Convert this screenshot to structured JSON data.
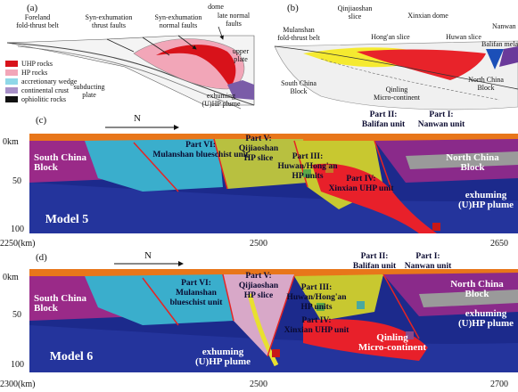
{
  "panel_a": {
    "label": "(a)",
    "annotations": [
      [
        "Foreland",
        "fold-thrust belt"
      ],
      [
        "Syn-exhumation",
        "thrust faults"
      ],
      [
        "Syn-exhumation",
        "normal faults"
      ],
      [
        "dome"
      ],
      [
        "late normal",
        "faults"
      ],
      [
        "upper",
        "plate"
      ],
      [
        "subducting",
        "plate"
      ],
      [
        "exhuming",
        "(U)HP plume"
      ]
    ],
    "legend": [
      "UHP rocks",
      "HP rocks",
      "accretionary wedge",
      "continental crust",
      "ophiolitic rocks"
    ]
  },
  "panel_b": {
    "label": "(b)",
    "annotations": [
      [
        "Mulanshan",
        "fold-thrust belt"
      ],
      [
        "Qinjiaoshan",
        "slice"
      ],
      [
        "Hong'an slice"
      ],
      [
        "Xinxian dome"
      ],
      [
        "Huwan slice"
      ],
      [
        "Nanwan fl"
      ],
      [
        "Balifan melange"
      ],
      [
        "South China",
        "Block"
      ],
      [
        "Qinling",
        "Micro-continent"
      ],
      [
        "North China",
        "Block"
      ]
    ]
  },
  "panel_c": {
    "label": "(c)",
    "north": "N",
    "depth_ticks": [
      "0km",
      "50",
      "100"
    ],
    "distance_ticks": [
      "2250(km)",
      "2500",
      "2650"
    ],
    "model": "Model 5",
    "annotations": [
      [
        "South China",
        "Block"
      ],
      [
        "Part VI:",
        "Mulanshan blueschist unit"
      ],
      [
        "Part V:",
        "Qijiaoshan",
        "HP slice"
      ],
      [
        "Part III:",
        "Huwan/Hong'an",
        "HP units"
      ],
      [
        "Part IV:",
        "Xinxian UHP unit"
      ],
      [
        "Part II:",
        "Balifan unit"
      ],
      [
        "Part I:",
        "Nanwan unit"
      ],
      [
        "North China",
        "Block"
      ],
      [
        "exhuming",
        "(U)HP plume"
      ]
    ]
  },
  "panel_d": {
    "label": "(d)",
    "north": "N",
    "depth_ticks": [
      "0km",
      "50",
      "100"
    ],
    "distance_ticks": [
      "2300(km)",
      "2500",
      "2700"
    ],
    "model": "Model 6",
    "annotations": [
      [
        "South China",
        "Block"
      ],
      [
        "Part VI:",
        "Mulanshan",
        "blueschist unit"
      ],
      [
        "Part V:",
        "Qijiaoshan",
        "HP slice"
      ],
      [
        "Part III:",
        "Huwan/Hong'an",
        "HP units"
      ],
      [
        "Part IV:",
        "Xinxian UHP unit"
      ],
      [
        "Part II:",
        "Balifan unit"
      ],
      [
        "Part I:",
        "Nanwan unit"
      ],
      [
        "North China",
        "Block"
      ],
      [
        "exhuming",
        "(U)HP plume"
      ],
      [
        "exhuming",
        "(U)HP plume"
      ],
      [
        "Qinling",
        "Micro-continent"
      ]
    ]
  }
}
